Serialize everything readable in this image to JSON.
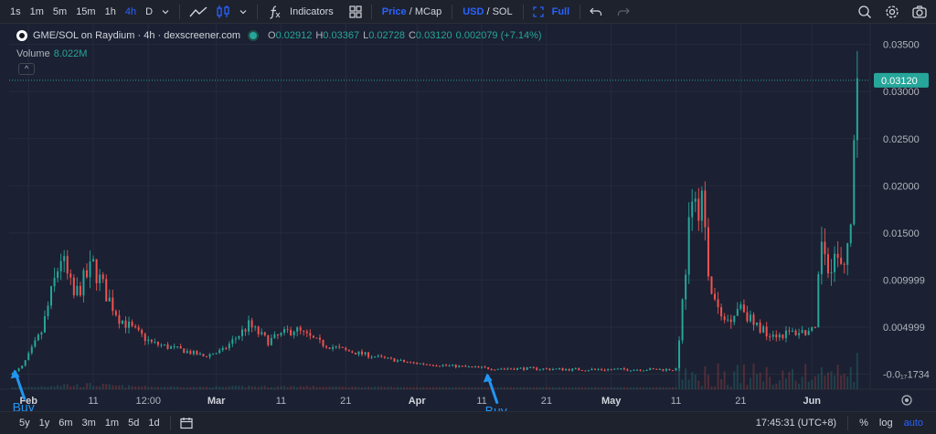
{
  "toolbar": {
    "intervals": [
      "1s",
      "1m",
      "5m",
      "15m",
      "1h",
      "4h",
      "D"
    ],
    "active_interval": "4h",
    "indicators_label": "Indicators",
    "price_label": "Price",
    "mcap_label": "MCap",
    "usd_label": "USD",
    "sol_label": "SOL",
    "full_label": "Full"
  },
  "legend": {
    "title": "GME/SOL on Raydium · 4h · dexscreener.com",
    "o_key": "O",
    "o_val": "0.02912",
    "h_key": "H",
    "h_val": "0.03367",
    "l_key": "L",
    "l_val": "0.02728",
    "c_key": "C",
    "c_val": "0.03120",
    "change": "0.002079 (+7.14%)",
    "volume_label": "Volume",
    "volume_value": "8.022M",
    "collapse_glyph": "^"
  },
  "colors": {
    "up": "#26a69a",
    "down": "#ef5350",
    "annotation": "#2196f3",
    "background": "#1b2032"
  },
  "chart_data": {
    "type": "candlestick",
    "title": "GME/SOL on Raydium",
    "interval": "4h",
    "y_ticks": [
      "0.03500",
      "0.03000",
      "0.02500",
      "0.02000",
      "0.01500",
      "0.009999",
      "0.004999",
      "-0.0₁₇1734"
    ],
    "y_tick_values": [
      0.035,
      0.03,
      0.025,
      0.02,
      0.015,
      0.01,
      0.005,
      0
    ],
    "ylim": [
      -0.0016,
      0.0372
    ],
    "current_price_label": "0.03120",
    "current_price": 0.0312,
    "x_ticks": [
      "Feb",
      "11",
      "12:00",
      "Mar",
      "11",
      "21",
      "Apr",
      "11",
      "21",
      "May",
      "11",
      "21",
      "Jun"
    ],
    "x_tick_days": [
      1.0,
      11.0,
      19.5,
      30.0,
      40.0,
      50.0,
      61.0,
      71.0,
      81.0,
      91.0,
      101.0,
      111.0,
      122.0
    ],
    "xlim": [
      -2,
      131
    ],
    "series": [
      {
        "x": [
          -1.5,
          0,
          3,
          6,
          8,
          11,
          13,
          15,
          17,
          20,
          25,
          28,
          31,
          35,
          38,
          42,
          46,
          50,
          55,
          60,
          66,
          70,
          73,
          78,
          85,
          90,
          95,
          101,
          101.8,
          103,
          105,
          106,
          108,
          109,
          111,
          113,
          115,
          117,
          120,
          122.5,
          123.5,
          124.5,
          125.5,
          127,
          128.2,
          128.8,
          129.3
        ],
        "close": [
          0.0,
          0.0008,
          0.0045,
          0.0125,
          0.0082,
          0.0115,
          0.0085,
          0.006,
          0.0048,
          0.0033,
          0.0025,
          0.0019,
          0.0025,
          0.0052,
          0.0035,
          0.0048,
          0.0033,
          0.0025,
          0.0018,
          0.0012,
          0.0009,
          0.0007,
          0.0006,
          0.0006,
          0.0005,
          0.0005,
          0.0005,
          0.0005,
          0.006,
          0.0155,
          0.0195,
          0.0098,
          0.0058,
          0.0058,
          0.0075,
          0.0052,
          0.0045,
          0.0042,
          0.0045,
          0.0045,
          0.0145,
          0.012,
          0.0125,
          0.0105,
          0.019,
          0.027,
          0.0312
        ]
      }
    ],
    "annotations": [
      {
        "label": "Buy",
        "x": -1.2,
        "y": 0.0005
      },
      {
        "label": "Buy",
        "x": 71.8,
        "y": 0.0001
      }
    ]
  },
  "bottombar": {
    "ranges": [
      "5y",
      "1y",
      "6m",
      "3m",
      "1m",
      "5d",
      "1d"
    ],
    "time": "17:45:31 (UTC+8)",
    "percent_label": "%",
    "log_label": "log",
    "auto_label": "auto"
  }
}
